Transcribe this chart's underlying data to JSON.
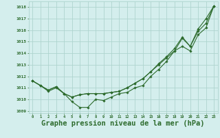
{
  "background_color": "#d4eeed",
  "grid_color": "#aed4cf",
  "line_color": "#2d6b2d",
  "xlabel": "Graphe pression niveau de la mer (hPa)",
  "xlabel_fontsize": 7.5,
  "ylim": [
    1008.8,
    1018.5
  ],
  "xlim": [
    -0.5,
    23.5
  ],
  "yticks": [
    1009,
    1010,
    1011,
    1012,
    1013,
    1014,
    1015,
    1016,
    1017,
    1018
  ],
  "xticks": [
    0,
    1,
    2,
    3,
    4,
    5,
    6,
    7,
    8,
    9,
    10,
    11,
    12,
    13,
    14,
    15,
    16,
    17,
    18,
    19,
    20,
    21,
    22,
    23
  ],
  "series1": [
    1011.6,
    1011.2,
    1010.7,
    1011.0,
    1010.5,
    1009.8,
    1009.3,
    1009.3,
    1010.0,
    1009.9,
    1010.2,
    1010.5,
    1010.6,
    1011.0,
    1011.2,
    1012.0,
    1012.6,
    1013.3,
    1014.2,
    1015.3,
    1014.6,
    1016.1,
    1017.0,
    1018.1
  ],
  "series2": [
    1011.6,
    1011.2,
    1010.8,
    1011.1,
    1010.5,
    1010.2,
    1010.4,
    1010.5,
    1010.5,
    1010.5,
    1010.6,
    1010.7,
    1011.0,
    1011.4,
    1011.8,
    1012.4,
    1013.0,
    1013.6,
    1014.2,
    1014.6,
    1014.2,
    1015.6,
    1016.2,
    1018.1
  ],
  "series3": [
    1011.6,
    1011.2,
    1010.8,
    1011.1,
    1010.5,
    1010.2,
    1010.4,
    1010.5,
    1010.5,
    1010.5,
    1010.6,
    1010.7,
    1011.0,
    1011.4,
    1011.8,
    1012.4,
    1013.1,
    1013.7,
    1014.4,
    1015.4,
    1014.6,
    1015.9,
    1016.6,
    1018.1
  ]
}
